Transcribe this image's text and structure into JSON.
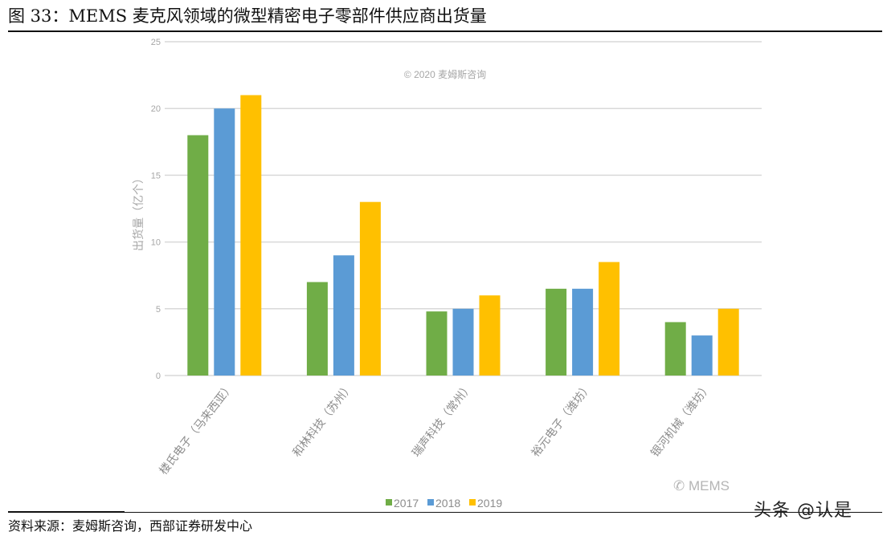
{
  "figure": {
    "label": "图 33：",
    "title": "MEMS 麦克风领域的微型精密电子零部件供应商出货量"
  },
  "source": "资料来源：麦姆斯咨询，西部证券研发中心",
  "watermarks": {
    "copyright": "© 2020 麦姆斯咨询",
    "wechat": "MEMS",
    "platform": "头条 @认是"
  },
  "colors": {
    "2017": "#70AD47",
    "2018": "#5B9BD5",
    "2019": "#FFC000",
    "grid": "#d9d9d9",
    "tick_text": "#a6a6a6"
  },
  "chart_data": {
    "type": "bar",
    "title": "",
    "xlabel": "",
    "ylabel": "出货量（亿个）",
    "ylim": [
      0,
      25
    ],
    "yticks": [
      0,
      5,
      10,
      15,
      20,
      25
    ],
    "grid": true,
    "legend_position": "bottom",
    "categories": [
      "楼氏电子（马来西亚）",
      "和林科技（苏州）",
      "瑞声科技（常州）",
      "裕元电子（潍坊）",
      "银河机械（潍坊）"
    ],
    "series": [
      {
        "name": "2017",
        "color": "#70AD47",
        "values": [
          18,
          7,
          4.8,
          6.5,
          4
        ]
      },
      {
        "name": "2018",
        "color": "#5B9BD5",
        "values": [
          20,
          9,
          5,
          6.5,
          3
        ]
      },
      {
        "name": "2019",
        "color": "#FFC000",
        "values": [
          21,
          13,
          6,
          8.5,
          5
        ]
      }
    ],
    "annotations": [
      "© 2020 麦姆斯咨询"
    ]
  }
}
